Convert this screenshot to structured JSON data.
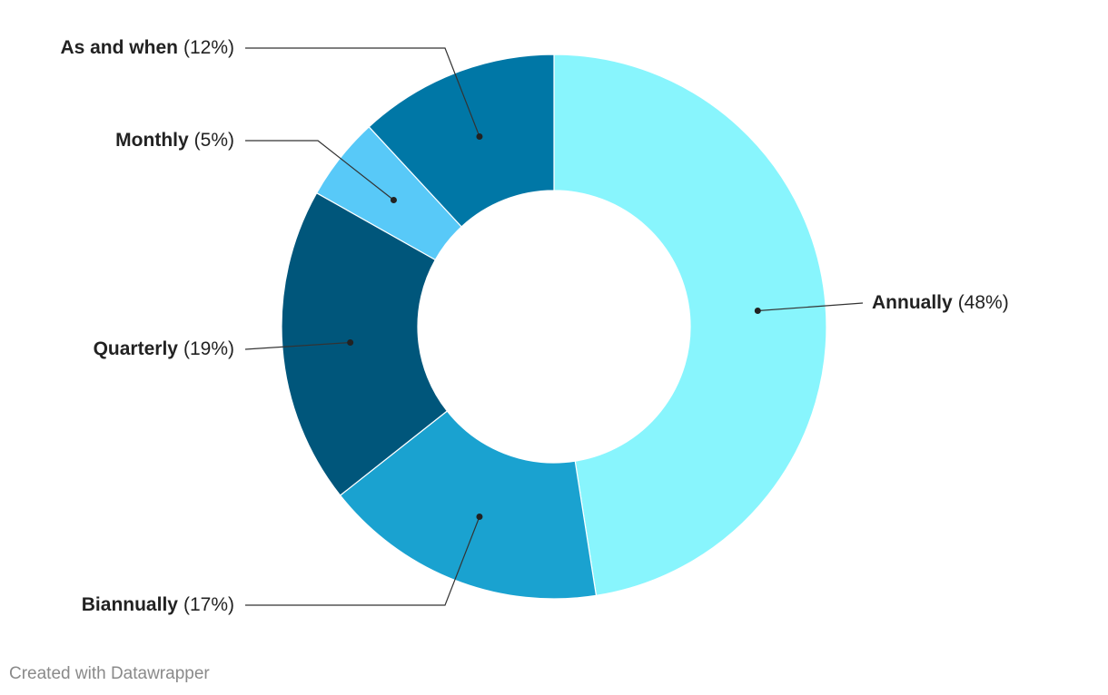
{
  "chart_data": {
    "type": "donut",
    "categories": [
      "Annually",
      "Biannually",
      "Quarterly",
      "Monthly",
      "As and when"
    ],
    "values": [
      48,
      17,
      19,
      5,
      12
    ],
    "value_labels": [
      "(48%)",
      "(17%)",
      "(19%)",
      "(5%)",
      "(12%)"
    ],
    "colors": [
      "#88f5fd",
      "#1aa2d0",
      "#00567b",
      "#58c9f8",
      "#0077a6"
    ],
    "caption": "Created with Datawrapper"
  }
}
